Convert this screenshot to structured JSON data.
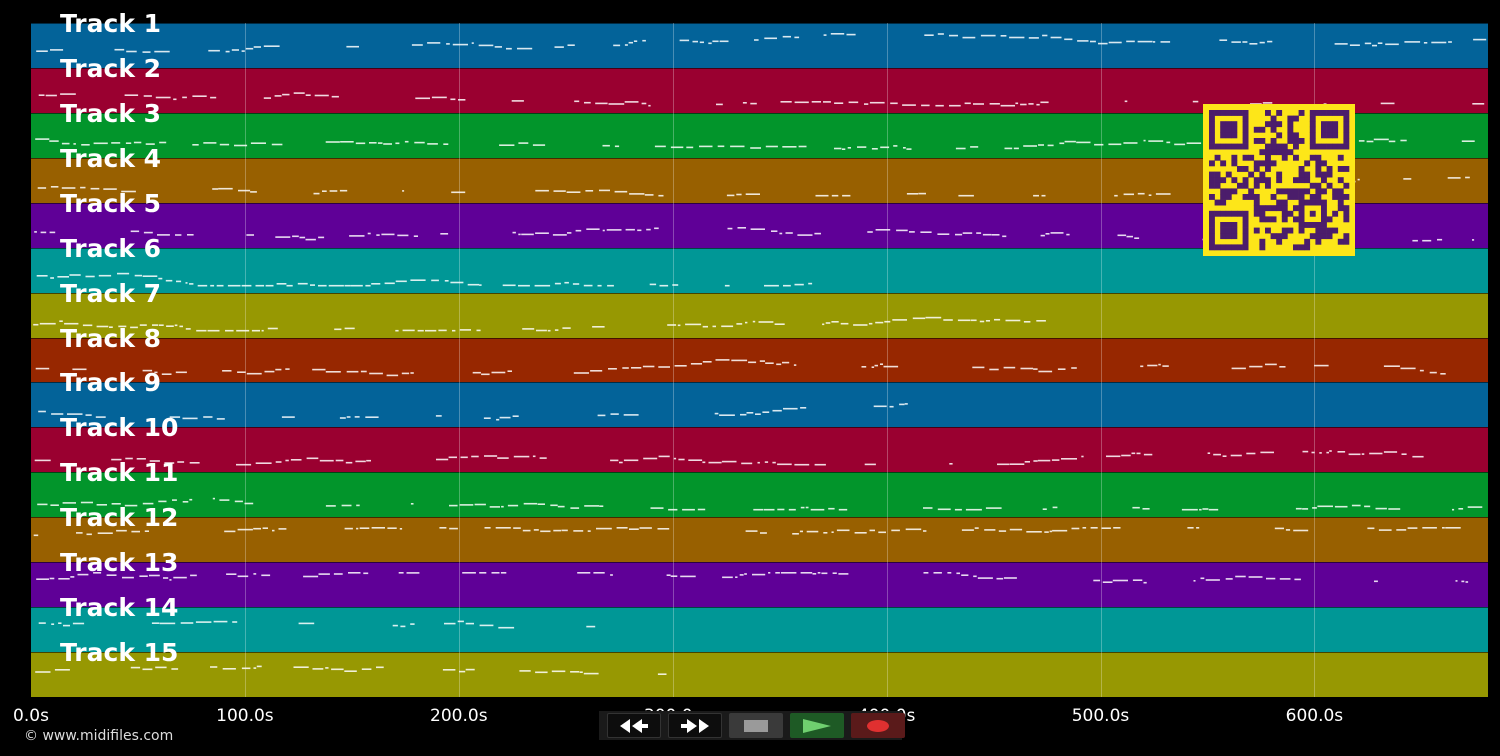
{
  "tracks": [
    {
      "label": "Track 1",
      "color": "#036399"
    },
    {
      "label": "Track 2",
      "color": "#9a0030"
    },
    {
      "label": "Track 3",
      "color": "#02952b"
    },
    {
      "label": "Track 4",
      "color": "#986000"
    },
    {
      "label": "Track 5",
      "color": "#5f0097"
    },
    {
      "label": "Track 6",
      "color": "#009796"
    },
    {
      "label": "Track 7",
      "color": "#979802"
    },
    {
      "label": "Track 8",
      "color": "#972700"
    },
    {
      "label": "Track 9",
      "color": "#036399"
    },
    {
      "label": "Track 10",
      "color": "#9a0030"
    },
    {
      "label": "Track 11",
      "color": "#02952b"
    },
    {
      "label": "Track 12",
      "color": "#986000"
    },
    {
      "label": "Track 13",
      "color": "#5f0097"
    },
    {
      "label": "Track 14",
      "color": "#009796"
    },
    {
      "label": "Track 15",
      "color": "#979802"
    }
  ],
  "time_axis": {
    "ticks": [
      "0.0s",
      "100.0s",
      "200.0s",
      "300.0s",
      "400.0s",
      "500.0s",
      "600.0s"
    ]
  },
  "copyright": "© www.midifiles.com",
  "controls": {
    "rewind_icon": "double-arrow-left-icon",
    "forward_icon": "double-arrow-right-icon",
    "stop_icon": "stop-square-icon",
    "play_icon": "play-triangle-icon",
    "record_icon": "record-dot-icon",
    "play_color": "#2f8f3a",
    "record_color": "#e03030"
  },
  "qr_code": {
    "color": "#fde619",
    "dark": "#4b1d6b"
  }
}
